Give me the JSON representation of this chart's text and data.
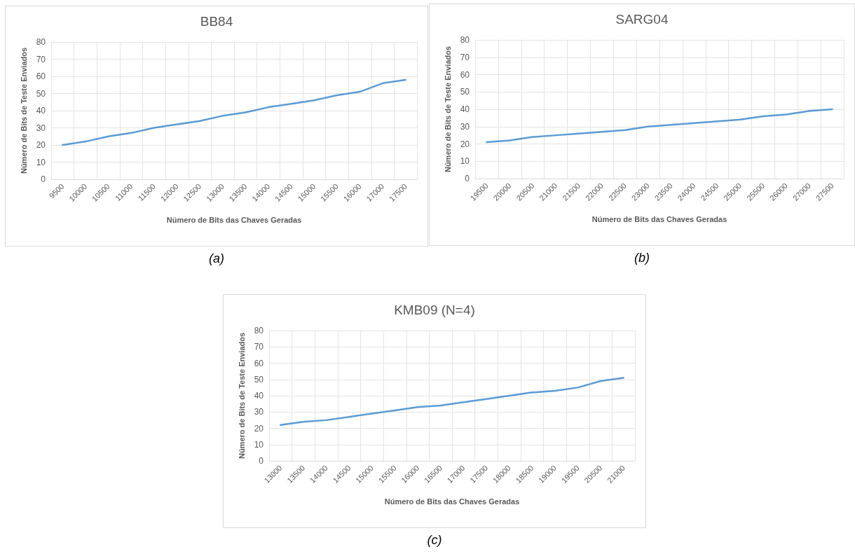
{
  "chart_data": [
    {
      "type": "line",
      "title": "BB84",
      "xlabel": "Número de Bits das Chaves Geradas",
      "ylabel": "Número de Bits de Teste Enviados",
      "categories": [
        "9500",
        "10000",
        "10500",
        "11000",
        "11500",
        "12000",
        "12500",
        "13000",
        "13500",
        "14000",
        "14500",
        "15000",
        "15500",
        "16000",
        "17000",
        "17500"
      ],
      "series": [
        {
          "color": "#5b9bd5",
          "values": [
            20,
            22,
            25,
            27,
            30,
            32,
            34,
            37,
            39,
            42,
            44,
            46,
            49,
            51,
            56,
            58
          ]
        }
      ],
      "ylim": [
        0,
        80
      ],
      "yticks": [
        0,
        10,
        20,
        30,
        40,
        50,
        60,
        70,
        80
      ],
      "grid": true,
      "marker": "none",
      "annotations": [
        "(a)"
      ]
    },
    {
      "type": "line",
      "title": "SARG04",
      "xlabel": "Número de Bits das Chaves Geradas",
      "ylabel": "Número de Bits de Teste Enviados",
      "categories": [
        "19500",
        "20000",
        "20500",
        "21000",
        "21500",
        "22000",
        "22500",
        "23000",
        "23500",
        "24000",
        "24500",
        "25000",
        "25500",
        "26000",
        "27000",
        "27500"
      ],
      "series": [
        {
          "color": "#5b9bd5",
          "values": [
            21,
            22,
            24,
            25,
            26,
            27,
            28,
            30,
            31,
            32,
            33,
            34,
            36,
            37,
            39,
            40
          ]
        }
      ],
      "ylim": [
        0,
        80
      ],
      "yticks": [
        0,
        10,
        20,
        30,
        40,
        50,
        60,
        70,
        80
      ],
      "grid": true,
      "marker": "none",
      "annotations": [
        "(b)"
      ]
    },
    {
      "type": "line",
      "title": "KMB09 (N=4)",
      "xlabel": "Número de Bits das Chaves Geradas",
      "ylabel": "Número de Bits de Teste Enviados",
      "categories": [
        "13000",
        "13500",
        "14000",
        "14500",
        "15000",
        "15500",
        "16000",
        "16500",
        "17000",
        "17500",
        "18000",
        "18500",
        "19000",
        "19500",
        "20500",
        "21000"
      ],
      "series": [
        {
          "color": "#5b9bd5",
          "values": [
            22,
            24,
            25,
            27,
            29,
            31,
            33,
            34,
            36,
            38,
            40,
            42,
            43,
            45,
            49,
            51
          ]
        }
      ],
      "ylim": [
        0,
        80
      ],
      "yticks": [
        0,
        10,
        20,
        30,
        40,
        50,
        60,
        70,
        80
      ],
      "grid": true,
      "marker": "none",
      "annotations": [
        "(c)"
      ]
    }
  ]
}
